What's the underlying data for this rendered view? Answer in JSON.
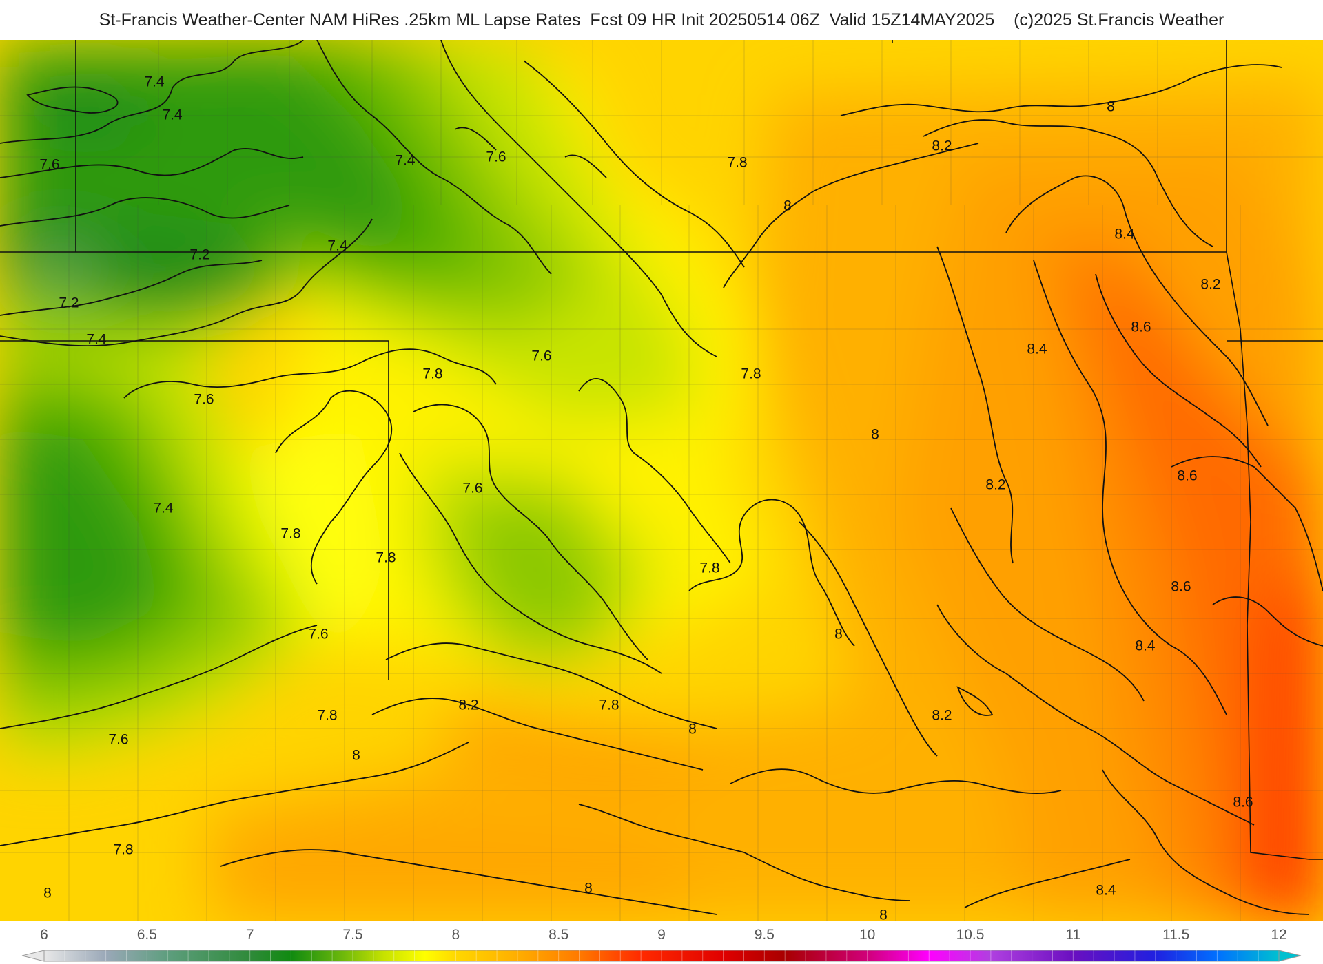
{
  "header": {
    "title": "St-Francis Weather-Center NAM HiRes .25km ML Lapse Rates  Fcst 09 HR Init 20250514 06Z  Valid 15Z14MAY2025    (c)2025 St.Francis Weather"
  },
  "map": {
    "contour_labels": [
      {
        "text": "7.4"
      },
      {
        "text": "7.4"
      },
      {
        "text": "7.6"
      },
      {
        "text": "7.4"
      },
      {
        "text": "7.6"
      },
      {
        "text": "7.8"
      },
      {
        "text": "8"
      },
      {
        "text": "8"
      },
      {
        "text": "8.2"
      },
      {
        "text": "7.2"
      },
      {
        "text": "7.4"
      },
      {
        "text": "7.2"
      },
      {
        "text": "7.4"
      },
      {
        "text": "8.4"
      },
      {
        "text": "8.2"
      },
      {
        "text": "7.6"
      },
      {
        "text": "7.8"
      },
      {
        "text": "7.8"
      },
      {
        "text": "8.6"
      },
      {
        "text": "7.6"
      },
      {
        "text": "8.4"
      },
      {
        "text": "8"
      },
      {
        "text": "8.6"
      },
      {
        "text": "7.6"
      },
      {
        "text": "7.4"
      },
      {
        "text": "8.2"
      },
      {
        "text": "7.8"
      },
      {
        "text": "7.8"
      },
      {
        "text": "7.8"
      },
      {
        "text": "8.6"
      },
      {
        "text": "7.6"
      },
      {
        "text": "8"
      },
      {
        "text": "8.4"
      },
      {
        "text": "8.2"
      },
      {
        "text": "7.8"
      },
      {
        "text": "7.8"
      },
      {
        "text": "8"
      },
      {
        "text": "8.2"
      },
      {
        "text": "7.6"
      },
      {
        "text": "8"
      },
      {
        "text": "8.6"
      },
      {
        "text": "7.8"
      },
      {
        "text": "8"
      },
      {
        "text": "8"
      },
      {
        "text": "8.4"
      },
      {
        "text": "8"
      }
    ]
  },
  "colorbar": {
    "ticks": [
      "6",
      "6.5",
      "7",
      "7.5",
      "8",
      "8.5",
      "9",
      "9.5",
      "10",
      "10.5",
      "11",
      "11.5",
      "12"
    ],
    "range": [
      6,
      12
    ],
    "stops": [
      {
        "v": 6.0,
        "c": "#e8e8e8"
      },
      {
        "v": 6.3,
        "c": "#9aa8b8"
      },
      {
        "v": 6.6,
        "c": "#5e9e7e"
      },
      {
        "v": 7.0,
        "c": "#2f8a3a"
      },
      {
        "v": 7.2,
        "c": "#108a10"
      },
      {
        "v": 7.45,
        "c": "#6db80b"
      },
      {
        "v": 7.65,
        "c": "#c6e200"
      },
      {
        "v": 7.85,
        "c": "#ffff00"
      },
      {
        "v": 8.0,
        "c": "#ffd800"
      },
      {
        "v": 8.3,
        "c": "#ffae00"
      },
      {
        "v": 8.6,
        "c": "#ff7a00"
      },
      {
        "v": 8.9,
        "c": "#ff2a00"
      },
      {
        "v": 9.3,
        "c": "#e00000"
      },
      {
        "v": 9.6,
        "c": "#a80000"
      },
      {
        "v": 10.0,
        "c": "#d0007a"
      },
      {
        "v": 10.3,
        "c": "#ff00ff"
      },
      {
        "v": 10.6,
        "c": "#b040e0"
      },
      {
        "v": 11.0,
        "c": "#6a0fc0"
      },
      {
        "v": 11.4,
        "c": "#2020e0"
      },
      {
        "v": 11.7,
        "c": "#0070ff"
      },
      {
        "v": 12.0,
        "c": "#00c0d0"
      }
    ]
  }
}
